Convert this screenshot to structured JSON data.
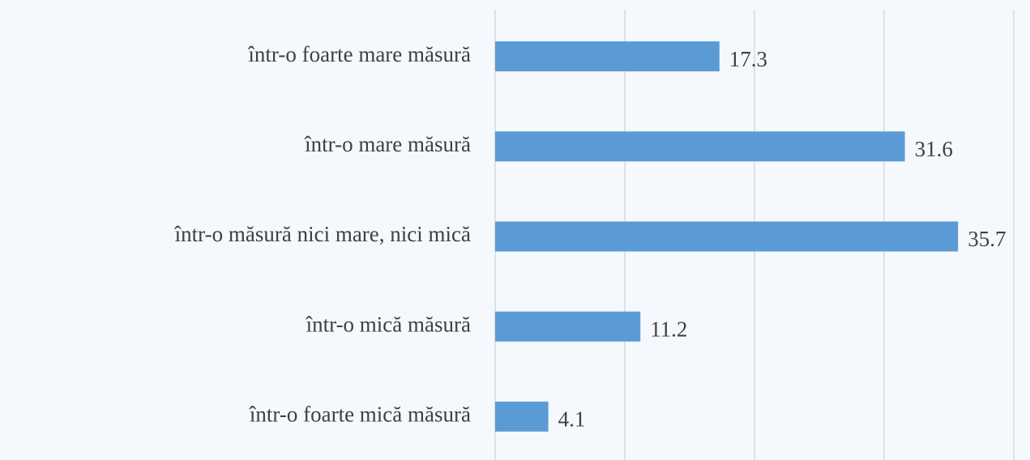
{
  "chart_data": {
    "type": "hbar",
    "categories": [
      "într-o foarte mare măsură",
      "într-o mare măsură",
      "într-o măsură nici mare, nici mică",
      "într-o mică măsură",
      "într-o foarte mică măsură"
    ],
    "values": [
      17.3,
      31.6,
      35.7,
      11.2,
      4.1
    ],
    "color": "#5b9bd5",
    "xlim": [
      0,
      40
    ],
    "xticks": [
      0,
      10,
      20,
      30,
      40
    ],
    "grid": true
  }
}
